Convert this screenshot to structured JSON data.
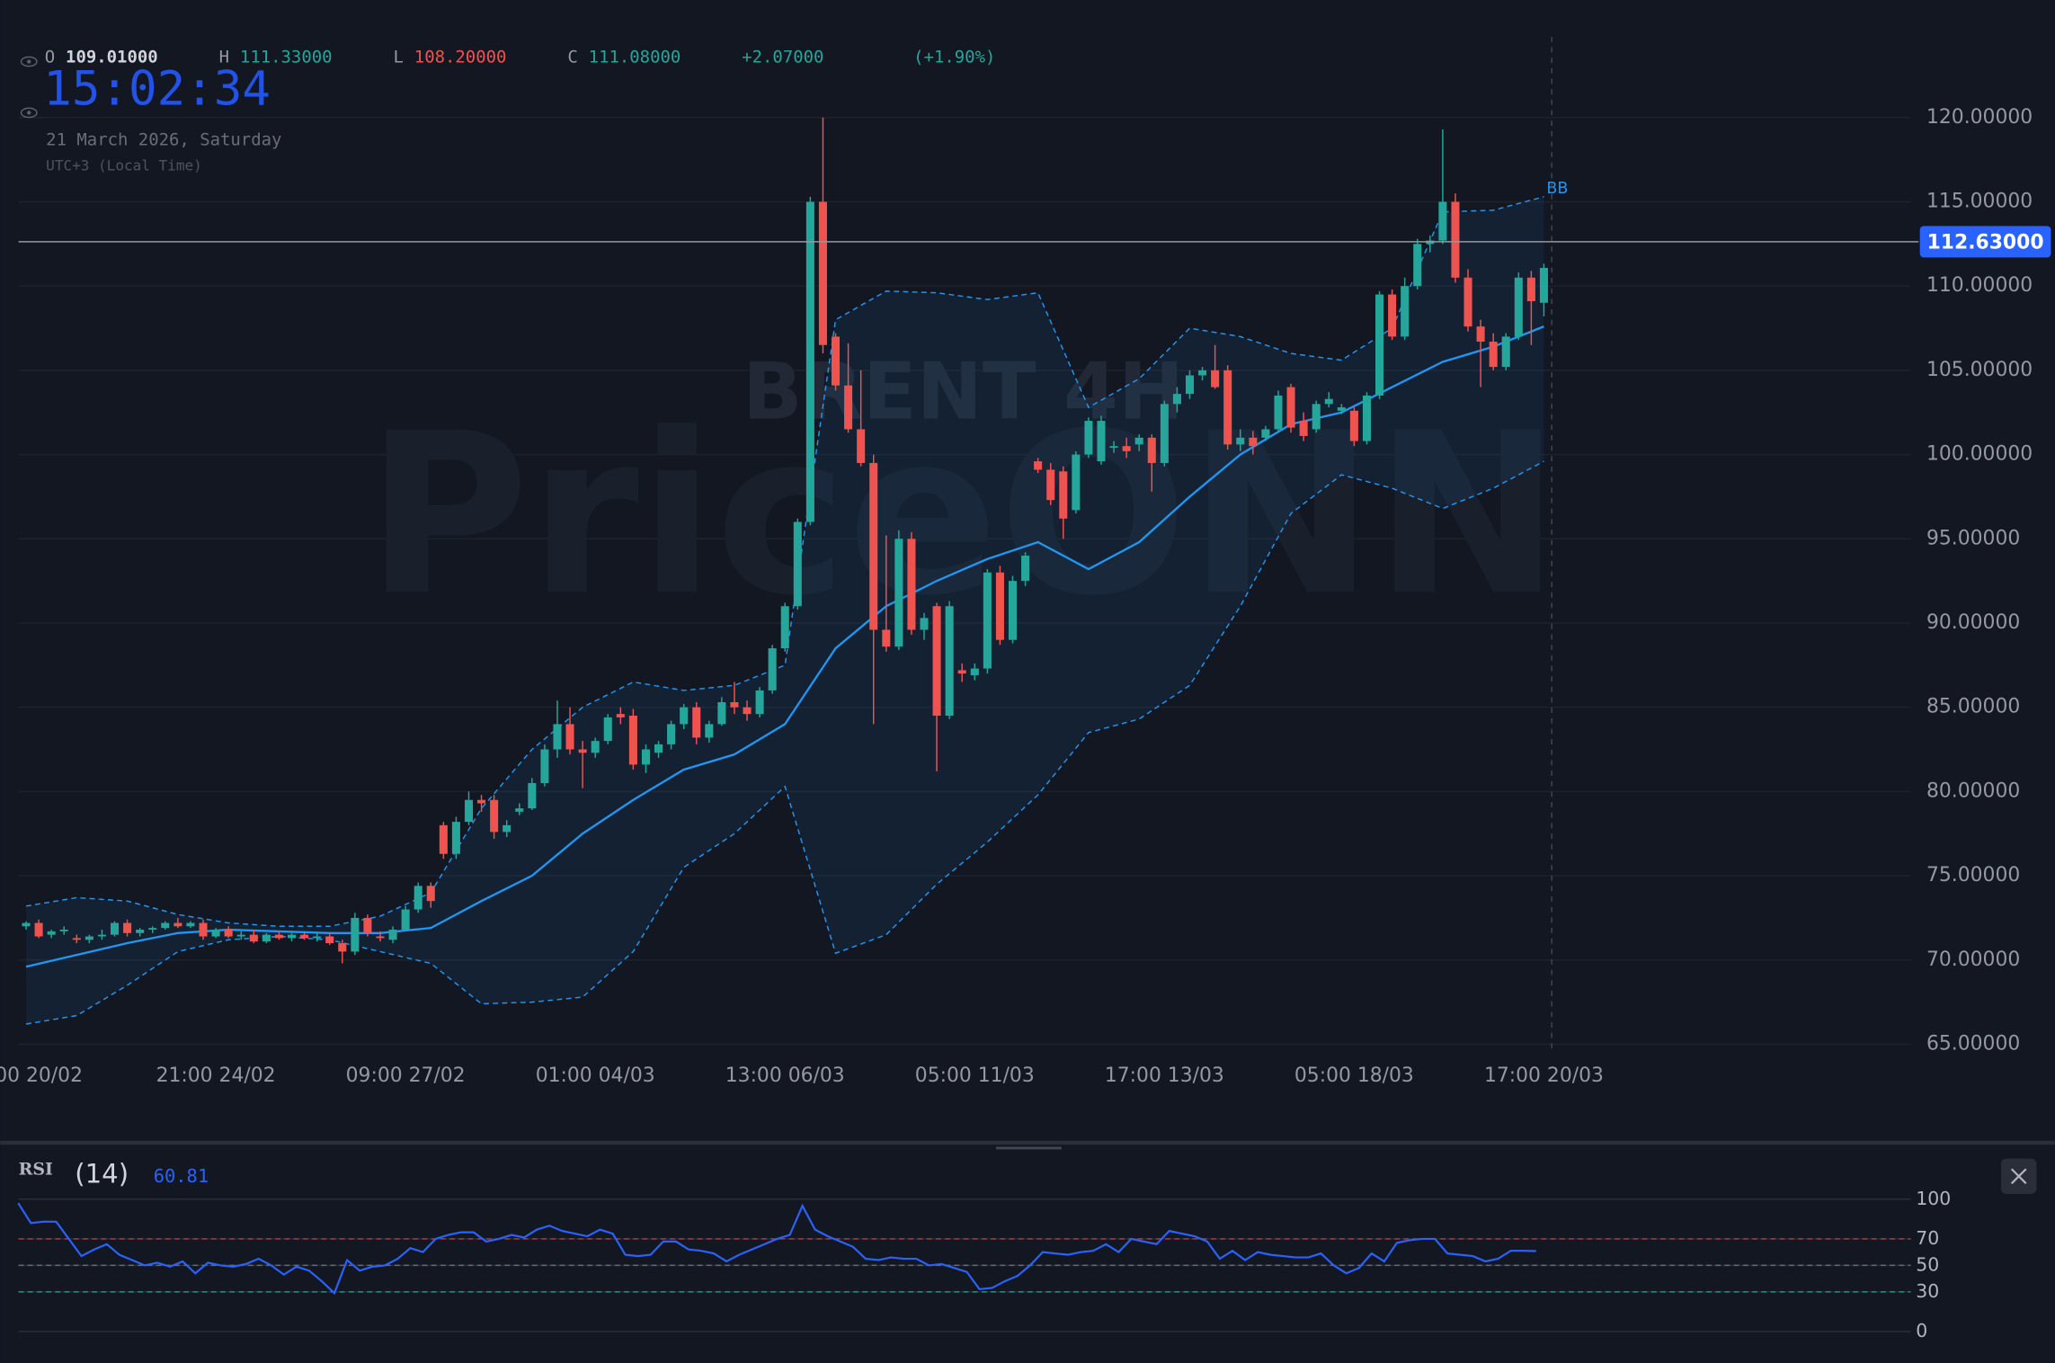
{
  "chart_data": [
    {
      "type": "candlestick",
      "title": "BRENT 4H",
      "watermark": "PriceONN",
      "clock": "15:02:34",
      "date": "21 March 2026, Saturday",
      "timezone": "UTC+3 (Local Time)",
      "ohlc_header": [
        {
          "label": "O",
          "value": "109.01000",
          "color": "#d1d4dc"
        },
        {
          "label": "H",
          "value": "111.33000",
          "color": "#26a69a"
        },
        {
          "label": "L",
          "value": "108.20000",
          "color": "#ef5350"
        },
        {
          "label": "C",
          "value": "111.08000",
          "color": "#26a69a"
        }
      ],
      "change": "+2.07000",
      "change_pct": "(+1.90%)",
      "change_color": "#26a69a",
      "open": [
        72.0,
        72.2,
        71.5,
        71.7,
        71.3,
        71.2,
        71.4,
        71.5,
        72.2,
        71.6,
        71.8,
        71.9,
        72.2,
        72.0,
        72.2,
        71.4,
        71.8,
        71.4,
        71.5,
        71.1,
        71.5,
        71.3,
        71.5,
        71.3,
        71.4,
        71.0,
        70.5,
        72.5,
        71.4,
        71.2,
        71.8,
        73.0,
        74.4,
        78.0,
        76.3,
        78.2,
        79.5,
        79.5,
        77.6,
        78.8,
        79.0,
        80.5,
        82.5,
        84.0,
        82.5,
        82.3,
        83.0,
        84.6,
        84.5,
        81.6,
        82.3,
        82.8,
        84.0,
        85.0,
        83.2,
        84.0,
        85.3,
        85.0,
        84.6,
        86.0,
        88.5,
        91.0,
        96.0,
        115.0,
        107.0,
        104.1,
        101.5,
        99.5,
        89.6,
        88.6,
        95.0,
        89.6,
        91.0,
        84.5,
        87.2,
        86.9,
        87.3,
        93.0,
        89.0,
        92.5,
        99.6,
        99.1,
        99.0,
        96.7,
        100.0,
        99.6,
        100.4,
        100.5,
        100.6,
        101.0,
        99.5,
        103.0,
        103.6,
        104.7,
        105.0,
        105.0,
        100.6,
        101.0,
        101.0,
        101.5,
        104.0,
        102.0,
        101.5,
        103.0,
        102.6,
        102.6,
        100.8,
        103.5,
        109.5,
        107.0,
        110.0,
        112.5,
        112.7,
        115.0,
        110.5,
        107.6,
        106.7,
        105.2,
        107.0,
        110.5,
        109.01
      ],
      "high": [
        72.3,
        72.4,
        71.8,
        72.0,
        71.5,
        71.5,
        71.8,
        72.3,
        72.4,
        71.9,
        72.0,
        72.3,
        72.5,
        72.3,
        72.4,
        71.9,
        72.0,
        71.7,
        71.8,
        71.6,
        71.7,
        71.6,
        71.6,
        71.6,
        71.6,
        71.2,
        72.8,
        72.7,
        71.7,
        72.0,
        73.2,
        74.6,
        74.6,
        78.2,
        78.5,
        80.0,
        79.8,
        79.8,
        78.3,
        79.3,
        80.8,
        82.8,
        85.4,
        85.0,
        83.0,
        83.2,
        84.6,
        85.0,
        84.9,
        82.8,
        83.0,
        84.2,
        85.2,
        85.3,
        84.2,
        85.6,
        86.5,
        85.4,
        86.2,
        88.7,
        91.2,
        96.2,
        115.3,
        120.0,
        107.2,
        106.6,
        105.0,
        100.0,
        95.2,
        95.5,
        95.4,
        90.6,
        91.2,
        91.3,
        87.6,
        87.6,
        93.2,
        93.4,
        92.8,
        94.2,
        99.8,
        99.5,
        99.3,
        100.2,
        102.2,
        102.3,
        100.8,
        101.0,
        101.2,
        101.2,
        103.2,
        104.0,
        105.0,
        105.2,
        106.5,
        105.3,
        101.5,
        101.4,
        101.7,
        103.8,
        104.2,
        102.5,
        103.2,
        103.7,
        103.0,
        102.8,
        103.7,
        109.7,
        109.8,
        110.5,
        112.8,
        113.0,
        119.3,
        115.5,
        111.0,
        108.0,
        107.2,
        107.2,
        110.8,
        110.9,
        111.33
      ],
      "low": [
        71.8,
        71.3,
        71.3,
        71.5,
        71.0,
        71.0,
        71.2,
        71.4,
        71.4,
        71.4,
        71.6,
        71.8,
        71.9,
        71.9,
        71.2,
        71.3,
        71.3,
        71.2,
        71.0,
        71.0,
        71.2,
        71.1,
        71.2,
        71.1,
        70.9,
        69.8,
        70.3,
        71.4,
        71.1,
        71.0,
        71.7,
        72.8,
        73.1,
        76.0,
        76.0,
        78.0,
        78.8,
        77.2,
        77.3,
        78.6,
        78.9,
        80.3,
        82.0,
        82.2,
        80.2,
        82.0,
        82.8,
        84.0,
        81.3,
        81.1,
        82.0,
        82.5,
        83.7,
        82.8,
        82.9,
        83.9,
        84.6,
        84.2,
        84.4,
        85.8,
        88.3,
        90.8,
        95.8,
        106.0,
        103.8,
        101.3,
        99.3,
        84.0,
        88.3,
        88.4,
        89.3,
        89.0,
        81.2,
        84.3,
        86.5,
        86.6,
        87.0,
        88.7,
        88.8,
        92.2,
        98.9,
        97.0,
        95.0,
        96.5,
        99.8,
        99.4,
        100.1,
        99.8,
        100.2,
        97.8,
        99.3,
        102.5,
        103.3,
        104.4,
        103.9,
        100.3,
        100.2,
        100.0,
        100.8,
        101.3,
        101.3,
        100.8,
        101.3,
        102.8,
        102.4,
        100.5,
        100.6,
        103.3,
        106.8,
        106.8,
        109.8,
        112.0,
        112.5,
        110.2,
        107.3,
        104.0,
        105.0,
        105.0,
        106.8,
        106.5,
        108.2
      ],
      "close": [
        72.2,
        71.4,
        71.7,
        71.8,
        71.2,
        71.4,
        71.5,
        72.2,
        71.6,
        71.8,
        71.9,
        72.2,
        72.0,
        72.2,
        71.4,
        71.8,
        71.4,
        71.5,
        71.1,
        71.5,
        71.3,
        71.5,
        71.3,
        71.4,
        71.0,
        70.5,
        72.5,
        71.6,
        71.3,
        71.8,
        73.0,
        74.4,
        73.5,
        76.3,
        78.2,
        79.5,
        79.3,
        77.6,
        78.0,
        79.0,
        80.5,
        82.5,
        84.0,
        82.5,
        82.3,
        83.0,
        84.4,
        84.4,
        81.6,
        82.5,
        82.8,
        84.0,
        85.0,
        83.2,
        84.0,
        85.3,
        85.0,
        84.6,
        86.0,
        88.5,
        91.0,
        96.0,
        115.0,
        106.5,
        104.1,
        101.5,
        99.5,
        89.6,
        88.6,
        95.0,
        89.6,
        90.3,
        84.5,
        91.0,
        87.0,
        87.3,
        93.0,
        89.0,
        92.5,
        94.0,
        99.1,
        97.3,
        96.2,
        100.0,
        102.0,
        102.0,
        100.5,
        100.2,
        101.0,
        99.5,
        103.0,
        103.6,
        104.7,
        105.0,
        104.0,
        100.6,
        101.0,
        100.5,
        101.5,
        103.5,
        101.6,
        101.1,
        103.0,
        103.3,
        102.8,
        100.8,
        103.5,
        109.5,
        107.0,
        110.0,
        112.5,
        112.7,
        115.0,
        110.5,
        107.6,
        106.7,
        105.2,
        107.0,
        110.5,
        109.1,
        111.08
      ],
      "up_color": "#26a69a",
      "down_color": "#ef5350",
      "xlim": [
        -0.6,
        149
      ],
      "xticks": [
        {
          "value": 1,
          "label": "00 20/02"
        },
        {
          "value": 15,
          "label": "21:00 24/02"
        },
        {
          "value": 30,
          "label": "09:00 27/02"
        },
        {
          "value": 45,
          "label": "01:00 04/03"
        },
        {
          "value": 60,
          "label": "13:00 06/03"
        },
        {
          "value": 75,
          "label": "05:00 11/03"
        },
        {
          "value": 90,
          "label": "17:00 13/03"
        },
        {
          "value": 105,
          "label": "05:00 18/03"
        },
        {
          "value": 120,
          "label": "17:00 20/03"
        }
      ],
      "ylim": [
        64.75,
        124.8
      ],
      "yticks": [
        {
          "value": 65,
          "label": "65.00000"
        },
        {
          "value": 70,
          "label": "70.00000"
        },
        {
          "value": 75,
          "label": "75.00000"
        },
        {
          "value": 80,
          "label": "80.00000"
        },
        {
          "value": 85,
          "label": "85.00000"
        },
        {
          "value": 90,
          "label": "90.00000"
        },
        {
          "value": 95,
          "label": "95.00000"
        },
        {
          "value": 100,
          "label": "100.00000"
        },
        {
          "value": 105,
          "label": "105.00000"
        },
        {
          "value": 110,
          "label": "110.00000"
        },
        {
          "value": 115,
          "label": "115.00000"
        },
        {
          "value": 120,
          "label": "120.00000"
        }
      ],
      "grid": true,
      "last_price": {
        "value": 112.63,
        "label": "112.63000",
        "color": "#2962ff"
      },
      "bb": {
        "name": "BB",
        "color": "#2196f3",
        "x": [
          0,
          4,
          8,
          12,
          16,
          20,
          24,
          28,
          32,
          36,
          40,
          44,
          48,
          52,
          56,
          60,
          64,
          68,
          72,
          76,
          80,
          84,
          88,
          92,
          96,
          100,
          104,
          108,
          112,
          116,
          120
        ],
        "upper": [
          73.2,
          73.7,
          73.5,
          72.7,
          72.2,
          72.0,
          72.0,
          72.6,
          74.0,
          79.0,
          82.5,
          85.0,
          86.5,
          86.0,
          86.3,
          87.5,
          108.0,
          109.7,
          109.6,
          109.2,
          109.6,
          102.8,
          104.5,
          107.5,
          107.0,
          106.0,
          105.6,
          107.5,
          114.4,
          114.5,
          115.3
        ],
        "middle": [
          69.6,
          70.3,
          71.0,
          71.6,
          71.8,
          71.7,
          71.6,
          71.6,
          71.9,
          73.5,
          75.0,
          77.5,
          79.5,
          81.3,
          82.2,
          84.0,
          88.5,
          91.0,
          92.5,
          93.8,
          94.8,
          93.2,
          94.8,
          97.5,
          100.0,
          101.8,
          102.5,
          104.0,
          105.5,
          106.4,
          107.6
        ],
        "lower": [
          66.2,
          66.7,
          68.5,
          70.5,
          71.2,
          71.4,
          71.2,
          70.5,
          69.8,
          67.4,
          67.5,
          67.8,
          70.5,
          75.5,
          77.5,
          80.3,
          70.4,
          71.5,
          74.5,
          77.0,
          79.8,
          83.5,
          84.3,
          86.3,
          91.0,
          96.5,
          98.8,
          98.0,
          96.8,
          98.0,
          99.6
        ]
      }
    },
    {
      "type": "line",
      "title": "RSI",
      "subtitle": "(14)",
      "color": "#2962ff",
      "values": [
        97,
        82,
        83,
        83,
        70,
        57,
        62,
        66,
        58,
        54,
        50,
        52,
        49,
        53,
        44,
        52,
        50,
        49,
        51,
        55,
        50,
        43,
        49,
        46,
        38,
        29,
        54,
        46,
        49,
        50,
        55,
        63,
        60,
        70,
        73,
        75,
        75,
        68,
        70,
        73,
        71,
        77,
        80,
        76,
        74,
        72,
        77,
        74,
        58,
        57,
        58,
        68,
        68,
        62,
        61,
        59,
        53,
        58,
        62,
        66,
        70,
        73,
        95,
        77,
        72,
        68,
        64,
        55,
        54,
        56,
        55,
        55,
        50,
        51,
        48,
        45,
        32,
        33,
        38,
        42,
        50,
        60,
        59,
        58,
        60,
        61,
        66,
        60,
        70,
        68,
        66,
        76,
        74,
        72,
        68,
        55,
        61,
        54,
        60,
        58,
        57,
        56,
        56,
        59,
        50,
        44,
        48,
        59,
        53,
        67,
        69,
        70,
        70,
        59,
        58,
        57,
        53,
        55,
        61,
        61,
        60.81
      ],
      "xlim": [
        -0.6,
        149
      ],
      "ylim": [
        0,
        100
      ],
      "yticks": [
        100,
        70,
        50,
        30,
        0
      ],
      "levels": [
        {
          "value": 70,
          "color": "#f23645"
        },
        {
          "value": 50,
          "color": "#787b86"
        },
        {
          "value": 30,
          "color": "#22ab94"
        }
      ]
    }
  ]
}
